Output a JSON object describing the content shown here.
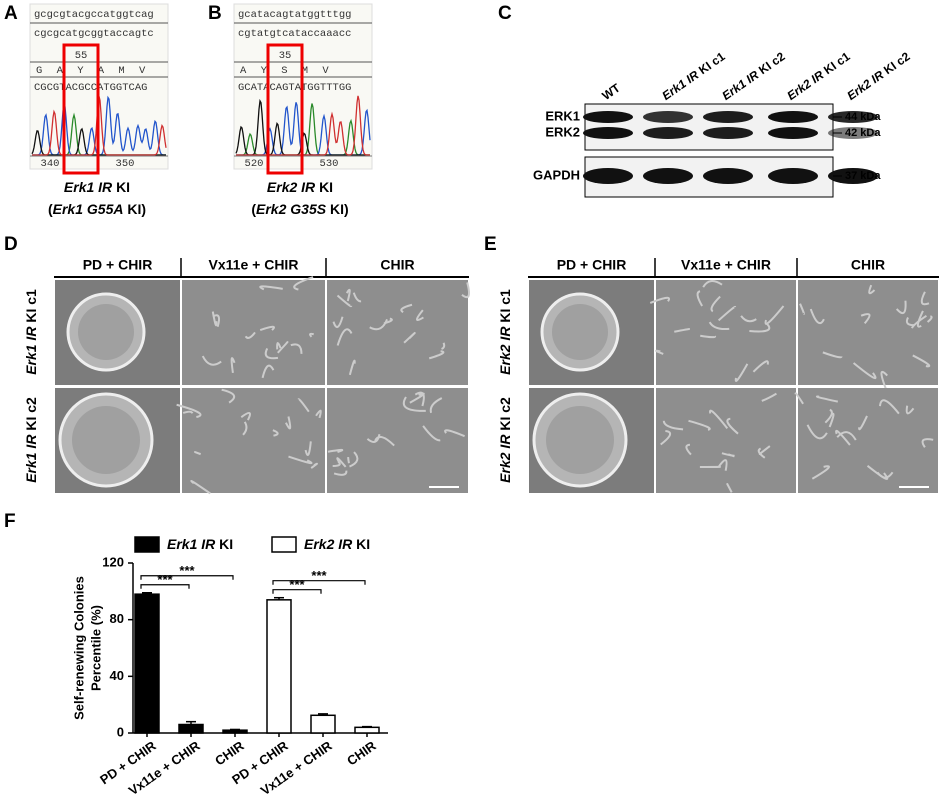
{
  "panel_a": {
    "label": "A",
    "seq_top": "gcgcgtacgccatggtcag",
    "seq_bottom": "cgcgcatgcggtaccagtc",
    "position": "55",
    "amino_acids": "G A Y A M V",
    "trace_seq": "CGCGTACGCCATGGTCAG",
    "ticks": [
      "340",
      "350"
    ],
    "caption": [
      "Erk1 IR KI",
      "(Erk1 G55A KI)"
    ]
  },
  "panel_b": {
    "label": "B",
    "seq_top": "gcatacagtatggtttgg",
    "seq_bottom": "cgtatgtcataccaaacc",
    "position": "35",
    "amino_acids": "A Y S M V",
    "trace_seq": "GCATACAGTATGGTTTGG",
    "ticks": [
      "520",
      "530"
    ],
    "caption": [
      "Erk2 IR KI",
      "(Erk2 G35S KI)"
    ]
  },
  "panel_c": {
    "label": "C",
    "lanes": [
      "WT",
      "Erk1 IR KI c1",
      "Erk1 IR KI c2",
      "Erk2 IR KI c1",
      "Erk2 IR KI c2"
    ],
    "bands": [
      "ERK1",
      "ERK2",
      "GAPDH"
    ],
    "markers": [
      "44 kDa",
      "42 kDa",
      "37 kDa"
    ]
  },
  "panel_d": {
    "label": "D",
    "columns": [
      "PD  + CHIR",
      "Vx11e + CHIR",
      "CHIR"
    ],
    "rows": [
      "Erk1 IR KI c1",
      "Erk1 IR KI c2"
    ]
  },
  "panel_e": {
    "label": "E",
    "columns": [
      "PD  + CHIR",
      "Vx11e + CHIR",
      "CHIR"
    ],
    "rows": [
      "Erk2 IR KI c1",
      "Erk2 IR KI c2"
    ]
  },
  "chart_data": {
    "type": "bar",
    "panel_label": "F",
    "y_label": [
      "Self-renewing Colonies",
      "Percentile (%)"
    ],
    "categories": [
      "PD + CHIR",
      "Vx11e + CHIR",
      "CHIR",
      "PD + CHIR",
      "Vx11e + CHIR",
      "CHIR"
    ],
    "series": [
      {
        "name": "Erk1 IR KI",
        "color": "#000000",
        "values": [
          98,
          6,
          2,
          null,
          null,
          null
        ],
        "errors": [
          1,
          2,
          0.5,
          null,
          null,
          null
        ]
      },
      {
        "name": "Erk2 IR KI",
        "color": "#ffffff",
        "values": [
          null,
          null,
          null,
          94,
          12.5,
          4
        ],
        "errors": [
          null,
          null,
          null,
          1.5,
          1,
          0.5
        ]
      }
    ],
    "ylim": [
      0,
      120
    ],
    "yticks": [
      0,
      40,
      80,
      120
    ],
    "significance": [
      {
        "categories": [
          0,
          2
        ],
        "label": "***"
      },
      {
        "categories": [
          0,
          1
        ],
        "label": "***"
      },
      {
        "categories": [
          3,
          5
        ],
        "label": "***"
      },
      {
        "categories": [
          3,
          4
        ],
        "label": "***"
      }
    ]
  }
}
